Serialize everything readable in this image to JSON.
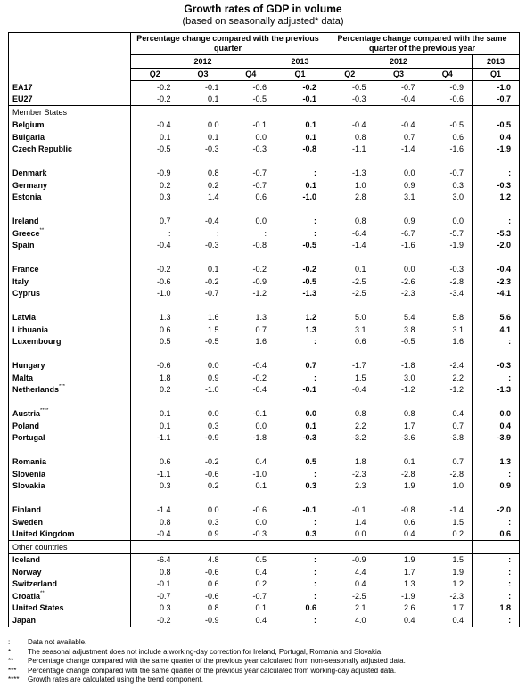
{
  "title": "Growth rates of GDP in volume",
  "subtitle": "(based on seasonally adjusted* data)",
  "header": {
    "group_prev_quarter": "Percentage change compared with the previous quarter",
    "group_same_quarter": "Percentage change compared with the same quarter of the previous year",
    "year_2012": "2012",
    "year_2013": "2013",
    "quarters": [
      "Q2",
      "Q3",
      "Q4",
      "Q1",
      "Q2",
      "Q3",
      "Q4",
      "Q1"
    ]
  },
  "sections": [
    {
      "heading": "",
      "groups": [
        [
          {
            "name": "EA17",
            "sup": "",
            "values": [
              "-0.2",
              "-0.1",
              "-0.6",
              "-0.2",
              "-0.5",
              "-0.7",
              "-0.9",
              "-1.0"
            ]
          },
          {
            "name": "EU27",
            "sup": "",
            "values": [
              "-0.2",
              "0.1",
              "-0.5",
              "-0.1",
              "-0.3",
              "-0.4",
              "-0.6",
              "-0.7"
            ]
          }
        ]
      ]
    },
    {
      "heading": "Member States",
      "groups": [
        [
          {
            "name": "Belgium",
            "sup": "",
            "values": [
              "-0.4",
              "0.0",
              "-0.1",
              "0.1",
              "-0.4",
              "-0.4",
              "-0.5",
              "-0.5"
            ]
          },
          {
            "name": "Bulgaria",
            "sup": "",
            "values": [
              "0.1",
              "0.1",
              "0.0",
              "0.1",
              "0.8",
              "0.7",
              "0.6",
              "0.4"
            ]
          },
          {
            "name": "Czech Republic",
            "sup": "",
            "values": [
              "-0.5",
              "-0.3",
              "-0.3",
              "-0.8",
              "-1.1",
              "-1.4",
              "-1.6",
              "-1.9"
            ]
          }
        ],
        [
          {
            "name": "Denmark",
            "sup": "",
            "values": [
              "-0.9",
              "0.8",
              "-0.7",
              ":",
              "-1.3",
              "0.0",
              "-0.7",
              ":"
            ]
          },
          {
            "name": "Germany",
            "sup": "",
            "values": [
              "0.2",
              "0.2",
              "-0.7",
              "0.1",
              "1.0",
              "0.9",
              "0.3",
              "-0.3"
            ]
          },
          {
            "name": "Estonia",
            "sup": "",
            "values": [
              "0.3",
              "1.4",
              "0.6",
              "-1.0",
              "2.8",
              "3.1",
              "3.0",
              "1.2"
            ]
          }
        ],
        [
          {
            "name": "Ireland",
            "sup": "",
            "values": [
              "0.7",
              "-0.4",
              "0.0",
              ":",
              "0.8",
              "0.9",
              "0.0",
              ":"
            ]
          },
          {
            "name": "Greece",
            "sup": "**",
            "values": [
              ":",
              ":",
              ":",
              ":",
              "-6.4",
              "-6.7",
              "-5.7",
              "-5.3"
            ]
          },
          {
            "name": "Spain",
            "sup": "",
            "values": [
              "-0.4",
              "-0.3",
              "-0.8",
              "-0.5",
              "-1.4",
              "-1.6",
              "-1.9",
              "-2.0"
            ]
          }
        ],
        [
          {
            "name": "France",
            "sup": "",
            "values": [
              "-0.2",
              "0.1",
              "-0.2",
              "-0.2",
              "0.1",
              "0.0",
              "-0.3",
              "-0.4"
            ]
          },
          {
            "name": "Italy",
            "sup": "",
            "values": [
              "-0.6",
              "-0.2",
              "-0.9",
              "-0.5",
              "-2.5",
              "-2.6",
              "-2.8",
              "-2.3"
            ]
          },
          {
            "name": "Cyprus",
            "sup": "",
            "values": [
              "-1.0",
              "-0.7",
              "-1.2",
              "-1.3",
              "-2.5",
              "-2.3",
              "-3.4",
              "-4.1"
            ]
          }
        ],
        [
          {
            "name": "Latvia",
            "sup": "",
            "values": [
              "1.3",
              "1.6",
              "1.3",
              "1.2",
              "5.0",
              "5.4",
              "5.8",
              "5.6"
            ]
          },
          {
            "name": "Lithuania",
            "sup": "",
            "values": [
              "0.6",
              "1.5",
              "0.7",
              "1.3",
              "3.1",
              "3.8",
              "3.1",
              "4.1"
            ]
          },
          {
            "name": "Luxembourg",
            "sup": "",
            "values": [
              "0.5",
              "-0.5",
              "1.6",
              ":",
              "0.6",
              "-0.5",
              "1.6",
              ":"
            ]
          }
        ],
        [
          {
            "name": "Hungary",
            "sup": "",
            "values": [
              "-0.6",
              "0.0",
              "-0.4",
              "0.7",
              "-1.7",
              "-1.8",
              "-2.4",
              "-0.3"
            ]
          },
          {
            "name": "Malta",
            "sup": "",
            "values": [
              "1.8",
              "0.9",
              "-0.2",
              ":",
              "1.5",
              "3.0",
              "2.2",
              ":"
            ]
          },
          {
            "name": "Netherlands",
            "sup": "***",
            "values": [
              "0.2",
              "-1.0",
              "-0.4",
              "-0.1",
              "-0.4",
              "-1.2",
              "-1.2",
              "-1.3"
            ]
          }
        ],
        [
          {
            "name": "Austria",
            "sup": "****",
            "values": [
              "0.1",
              "0.0",
              "-0.1",
              "0.0",
              "0.8",
              "0.8",
              "0.4",
              "0.0"
            ]
          },
          {
            "name": "Poland",
            "sup": "",
            "values": [
              "0.1",
              "0.3",
              "0.0",
              "0.1",
              "2.2",
              "1.7",
              "0.7",
              "0.4"
            ]
          },
          {
            "name": "Portugal",
            "sup": "",
            "values": [
              "-1.1",
              "-0.9",
              "-1.8",
              "-0.3",
              "-3.2",
              "-3.6",
              "-3.8",
              "-3.9"
            ]
          }
        ],
        [
          {
            "name": "Romania",
            "sup": "",
            "values": [
              "0.6",
              "-0.2",
              "0.4",
              "0.5",
              "1.8",
              "0.1",
              "0.7",
              "1.3"
            ]
          },
          {
            "name": "Slovenia",
            "sup": "",
            "values": [
              "-1.1",
              "-0.6",
              "-1.0",
              ":",
              "-2.3",
              "-2.8",
              "-2.8",
              ":"
            ]
          },
          {
            "name": "Slovakia",
            "sup": "",
            "values": [
              "0.3",
              "0.2",
              "0.1",
              "0.3",
              "2.3",
              "1.9",
              "1.0",
              "0.9"
            ]
          }
        ],
        [
          {
            "name": "Finland",
            "sup": "",
            "values": [
              "-1.4",
              "0.0",
              "-0.6",
              "-0.1",
              "-0.1",
              "-0.8",
              "-1.4",
              "-2.0"
            ]
          },
          {
            "name": "Sweden",
            "sup": "",
            "values": [
              "0.8",
              "0.3",
              "0.0",
              ":",
              "1.4",
              "0.6",
              "1.5",
              ":"
            ]
          },
          {
            "name": "United Kingdom",
            "sup": "",
            "values": [
              "-0.4",
              "0.9",
              "-0.3",
              "0.3",
              "0.0",
              "0.4",
              "0.2",
              "0.6"
            ]
          }
        ]
      ]
    },
    {
      "heading": "Other countries",
      "groups": [
        [
          {
            "name": "Iceland",
            "sup": "",
            "values": [
              "-6.4",
              "4.8",
              "0.5",
              ":",
              "-0.9",
              "1.9",
              "1.5",
              ":"
            ]
          },
          {
            "name": "Norway",
            "sup": "",
            "values": [
              "0.8",
              "-0.6",
              "0.4",
              ":",
              "4.4",
              "1.7",
              "1.9",
              ":"
            ]
          },
          {
            "name": "Switzerland",
            "sup": "",
            "values": [
              "-0.1",
              "0.6",
              "0.2",
              ":",
              "0.4",
              "1.3",
              "1.2",
              ":"
            ]
          },
          {
            "name": "Croatia",
            "sup": "**",
            "values": [
              "-0.7",
              "-0.6",
              "-0.7",
              ":",
              "-2.5",
              "-1.9",
              "-2.3",
              ":"
            ]
          },
          {
            "name": "United States",
            "sup": "",
            "values": [
              "0.3",
              "0.8",
              "0.1",
              "0.6",
              "2.1",
              "2.6",
              "1.7",
              "1.8"
            ]
          },
          {
            "name": "Japan",
            "sup": "",
            "values": [
              "-0.2",
              "-0.9",
              "0.4",
              ":",
              "4.0",
              "0.4",
              "0.4",
              ":"
            ]
          }
        ]
      ]
    }
  ],
  "footnotes": [
    {
      "mark": ":",
      "text": "Data not available."
    },
    {
      "mark": "*",
      "text": "The seasonal adjustment does not include a working-day correction for Ireland, Portugal, Romania and Slovakia."
    },
    {
      "mark": "**",
      "text": "Percentage change compared with the same quarter of the previous year calculated from non-seasonally adjusted data."
    },
    {
      "mark": "***",
      "text": "Percentage change compared with the same quarter of the previous year calculated from working-day adjusted data."
    },
    {
      "mark": "****",
      "text": "Growth rates are calculated using the trend component."
    }
  ]
}
